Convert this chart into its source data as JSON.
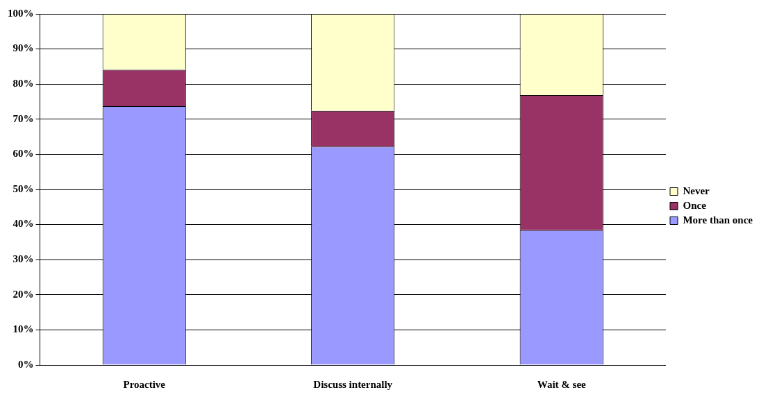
{
  "chart_data": {
    "type": "bar",
    "stacked": true,
    "categories": [
      "Proactive",
      "Discuss internally",
      "Wait & see"
    ],
    "series": [
      {
        "name": "More than once",
        "color": "#9999ff",
        "values": [
          73.7,
          62.2,
          38.4
        ]
      },
      {
        "name": "Once",
        "color": "#993366",
        "values": [
          10.4,
          10.2,
          38.5
        ]
      },
      {
        "name": "Never",
        "color": "#ffffcc",
        "values": [
          15.9,
          27.6,
          23.1
        ]
      }
    ],
    "ylim": [
      0,
      100
    ],
    "yticks": [
      {
        "value": 0,
        "label": "0%"
      },
      {
        "value": 10,
        "label": "10%"
      },
      {
        "value": 20,
        "label": "20%"
      },
      {
        "value": 30,
        "label": "30%"
      },
      {
        "value": 40,
        "label": "40%"
      },
      {
        "value": 50,
        "label": "50%"
      },
      {
        "value": 60,
        "label": "60%"
      },
      {
        "value": 70,
        "label": "70%"
      },
      {
        "value": 80,
        "label": "80%"
      },
      {
        "value": 90,
        "label": "90%"
      },
      {
        "value": 100,
        "label": "100%"
      }
    ],
    "grid": "y",
    "legend": "right"
  }
}
